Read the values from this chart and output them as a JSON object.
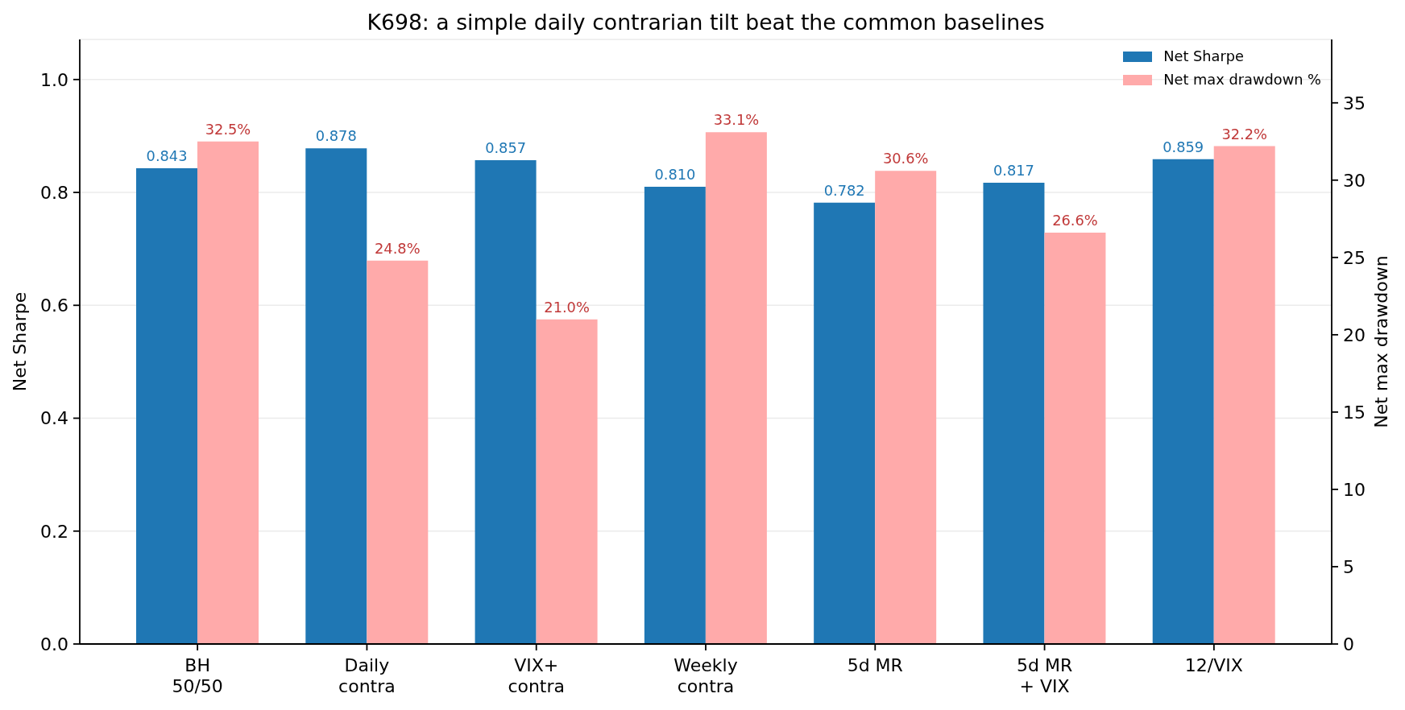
{
  "chart_data": {
    "type": "bar",
    "title": "K698: a simple daily contrarian tilt beat the common baselines",
    "ylabel": "Net Sharpe",
    "y2label": "Net max drawdown",
    "categories": [
      "BH\n50/50",
      "Daily\ncontra",
      "VIX+\ncontra",
      "Weekly\ncontra",
      "5d MR",
      "5d MR\n+ VIX",
      "12/VIX"
    ],
    "series": [
      {
        "name": "Net Sharpe",
        "color": "#1f77b4",
        "values": [
          0.843,
          0.878,
          0.857,
          0.81,
          0.782,
          0.817,
          0.859
        ],
        "value_labels": [
          "0.843",
          "0.878",
          "0.857",
          "0.810",
          "0.782",
          "0.817",
          "0.859"
        ]
      },
      {
        "name": "Net max drawdown %",
        "color": "#ffaaaa",
        "axis": "y2",
        "values": [
          32.5,
          24.8,
          21.0,
          33.1,
          30.6,
          26.6,
          32.2
        ],
        "value_labels": [
          "32.5%",
          "24.8%",
          "21.0%",
          "33.1%",
          "30.6%",
          "26.6%",
          "32.2%"
        ]
      }
    ],
    "ylim": [
      0,
      1.071
    ],
    "yticks": [
      {
        "value": 0,
        "label": "0.0"
      },
      {
        "value": 0.2,
        "label": "0.2"
      },
      {
        "value": 0.4,
        "label": "0.4"
      },
      {
        "value": 0.6,
        "label": "0.6"
      },
      {
        "value": 0.8,
        "label": "0.8"
      },
      {
        "value": 1,
        "label": "1.0"
      }
    ],
    "y2lim": [
      0,
      39.1
    ],
    "y2ticks": [
      0,
      5,
      10,
      15,
      20,
      25,
      30,
      35
    ],
    "grid": "y",
    "legend": "top right"
  }
}
